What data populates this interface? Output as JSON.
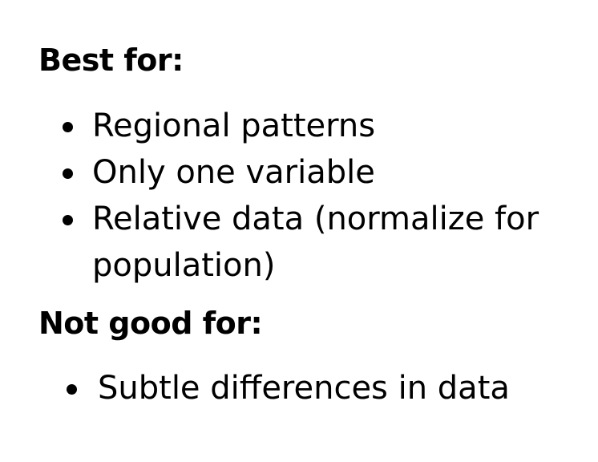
{
  "best_for": {
    "heading": "Best for:",
    "items": [
      "Regional patterns",
      "Only one variable",
      "Relative data (normalize for population)"
    ]
  },
  "not_good_for": {
    "heading": "Not good for:",
    "items": [
      "Subtle differences in data"
    ]
  },
  "colors": {
    "text": "#000000",
    "background": "#ffffff"
  }
}
